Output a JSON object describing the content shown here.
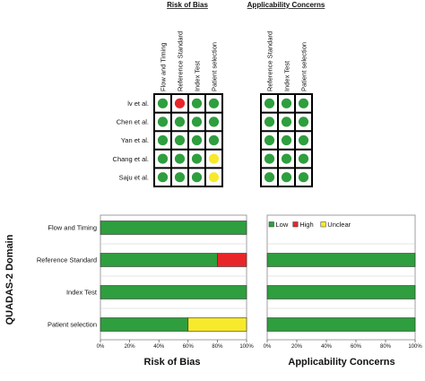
{
  "colors": {
    "low": "#2e9e3e",
    "high": "#e8262a",
    "unclear": "#f7ea2c",
    "grid": "#000000"
  },
  "chart_data": [
    {
      "type": "table",
      "title": "Risk of Bias",
      "columns": [
        "Flow and Timing",
        "Reference Standard",
        "Index Test",
        "Patient selection"
      ],
      "rows": [
        {
          "study": "lv et al.",
          "cells": [
            "low",
            "high",
            "low",
            "low"
          ]
        },
        {
          "study": "Chen et al.",
          "cells": [
            "low",
            "low",
            "low",
            "low"
          ]
        },
        {
          "study": "Yan et al.",
          "cells": [
            "low",
            "low",
            "low",
            "low"
          ]
        },
        {
          "study": "Chang et al.",
          "cells": [
            "low",
            "low",
            "low",
            "unclear"
          ]
        },
        {
          "study": "Saju et al.",
          "cells": [
            "low",
            "low",
            "low",
            "unclear"
          ]
        }
      ]
    },
    {
      "type": "table",
      "title": "Applicability Concerns",
      "columns": [
        "Reference Standard",
        "Index Test",
        "Patient selection"
      ],
      "rows": [
        {
          "study": "lv et al.",
          "cells": [
            "low",
            "low",
            "low"
          ]
        },
        {
          "study": "Chen et al.",
          "cells": [
            "low",
            "low",
            "low"
          ]
        },
        {
          "study": "Yan et al.",
          "cells": [
            "low",
            "low",
            "low"
          ]
        },
        {
          "study": "Chang et al.",
          "cells": [
            "low",
            "low",
            "low"
          ]
        },
        {
          "study": "Saju et al.",
          "cells": [
            "low",
            "low",
            "low"
          ]
        }
      ]
    },
    {
      "type": "bar",
      "orientation": "horizontal",
      "stacked": true,
      "xlabel": "Risk of Bias",
      "ylabel": "QUADAS-2 Domain",
      "categories": [
        "Flow and Timing",
        "Reference Standard",
        "Index Test",
        "Patient selection"
      ],
      "series": [
        {
          "name": "Low",
          "values": [
            100,
            80,
            100,
            60
          ]
        },
        {
          "name": "High",
          "values": [
            0,
            20,
            0,
            0
          ]
        },
        {
          "name": "Unclear",
          "values": [
            0,
            0,
            0,
            40
          ]
        }
      ],
      "xlim": [
        0,
        100
      ],
      "xticks": [
        "0%",
        "20%",
        "40%",
        "60%",
        "80%",
        "100%"
      ]
    },
    {
      "type": "bar",
      "orientation": "horizontal",
      "stacked": true,
      "xlabel": "Applicability Concerns",
      "categories": [
        "Flow and Timing",
        "Reference Standard",
        "Index Test",
        "Patient selection"
      ],
      "series": [
        {
          "name": "Low",
          "values": [
            null,
            100,
            100,
            100
          ]
        },
        {
          "name": "High",
          "values": [
            null,
            0,
            0,
            0
          ]
        },
        {
          "name": "Unclear",
          "values": [
            null,
            0,
            0,
            0
          ]
        }
      ],
      "xlim": [
        0,
        100
      ],
      "xticks": [
        "0%",
        "20%",
        "40%",
        "60%",
        "80%",
        "100%"
      ]
    }
  ],
  "legend": {
    "placement": "top",
    "items": [
      {
        "label": "Low",
        "key": "low"
      },
      {
        "label": "High",
        "key": "high"
      },
      {
        "label": "Unclear",
        "key": "unclear"
      }
    ]
  }
}
